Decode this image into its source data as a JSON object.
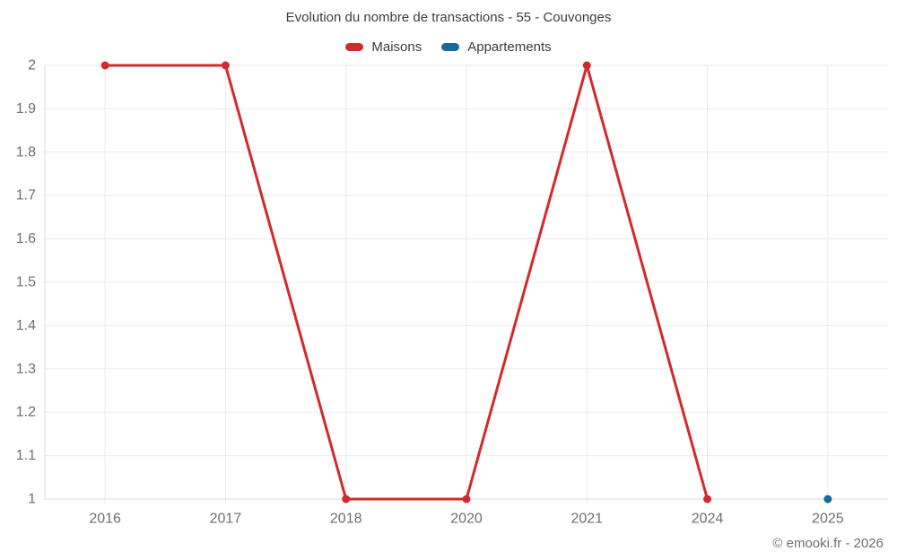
{
  "page": {
    "title": "Evolution du nombre de transactions - 55 - Couvonges",
    "copyright": "© emooki.fr - 2026"
  },
  "colors": {
    "maisons": "#d3292e",
    "appartements": "#1769a0",
    "gridline": "#ebebeb",
    "axis_border": "#d9d9d9",
    "tick_label": "#6e6e6e",
    "title_text": "#3d3d3d"
  },
  "chart_data": {
    "type": "line",
    "title": "Evolution du nombre de transactions - 55 - Couvonges",
    "xlabel": "",
    "ylabel": "",
    "categories": [
      "2016",
      "2017",
      "2018",
      "2020",
      "2021",
      "2024",
      "2025"
    ],
    "series": [
      {
        "name": "Maisons",
        "color": "#d3292e",
        "values": [
          2,
          2,
          1,
          1,
          2,
          1,
          null
        ]
      },
      {
        "name": "Appartements",
        "color": "#1769a0",
        "values": [
          null,
          null,
          null,
          null,
          null,
          null,
          1
        ]
      }
    ],
    "ylim": [
      1,
      2
    ],
    "yticks": [
      1,
      1.1,
      1.2,
      1.3,
      1.4,
      1.5,
      1.6,
      1.7,
      1.8,
      1.9,
      2
    ],
    "grid": true,
    "legend_position": "top",
    "line_width": 3,
    "point_radius": 4.5
  }
}
